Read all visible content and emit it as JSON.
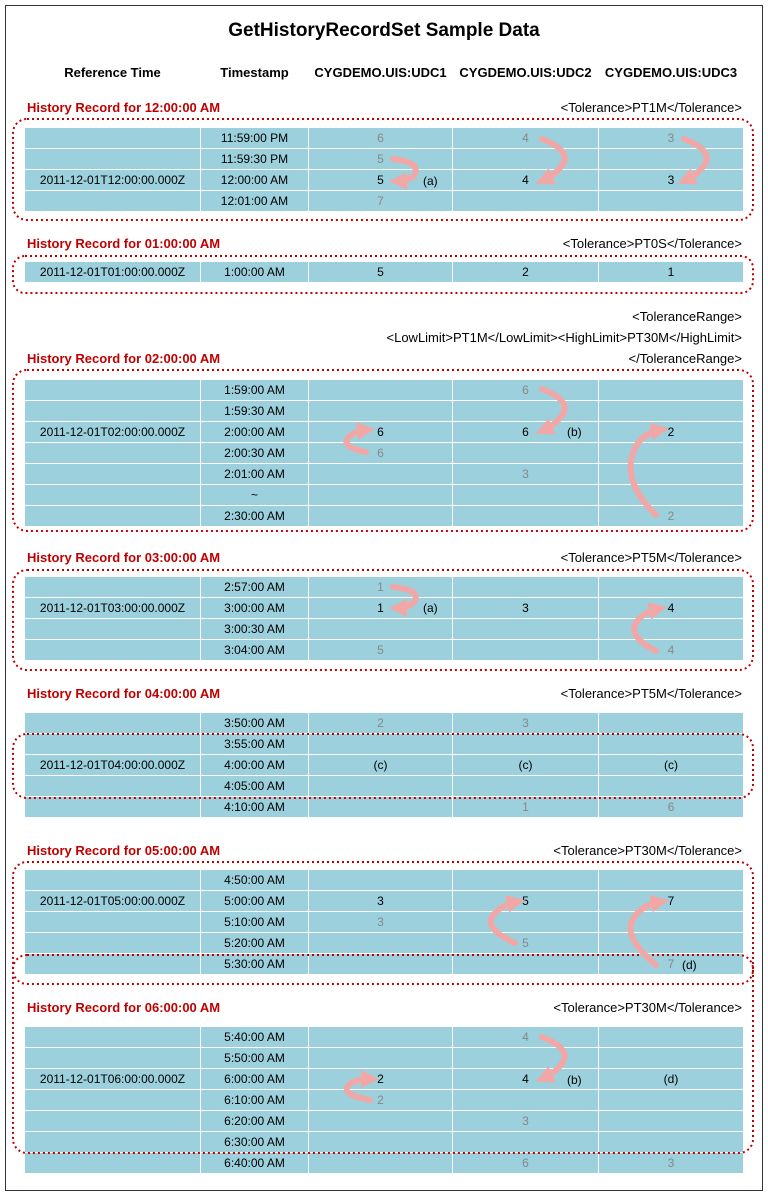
{
  "title": "GetHistoryRecordSet Sample Data",
  "columns": [
    "Reference Time",
    "Timestamp",
    "CYGDEMO.UIS:UDC1",
    "CYGDEMO.UIS:UDC2",
    "CYGDEMO.UIS:UDC3"
  ],
  "sections": [
    {
      "title": "History Record for 12:00:00 AM",
      "tolerance": "<Tolerance>PT1M</Tolerance>",
      "rows": [
        {
          "ref": "",
          "ts": "11:59:00 PM",
          "v": [
            {
              "t": "6",
              "g": true
            },
            {
              "t": "4",
              "g": true
            },
            {
              "t": "3",
              "g": true
            }
          ]
        },
        {
          "ref": "",
          "ts": "11:59:30 PM",
          "v": [
            {
              "t": "5",
              "g": true
            },
            {
              "t": "",
              "g": false
            },
            {
              "t": "",
              "g": false
            }
          ]
        },
        {
          "ref": "2011-12-01T12:00:00.000Z",
          "ts": "12:00:00 AM",
          "v": [
            {
              "t": "5",
              "g": false
            },
            {
              "t": "4",
              "g": false
            },
            {
              "t": "3",
              "g": false
            }
          ]
        },
        {
          "ref": "",
          "ts": "12:01:00 AM",
          "v": [
            {
              "t": "7",
              "g": true
            },
            {
              "t": "",
              "g": false
            },
            {
              "t": "",
              "g": false
            }
          ]
        }
      ]
    },
    {
      "title": "History Record for 01:00:00 AM",
      "tolerance": "<Tolerance>PT0S</Tolerance>",
      "rows": [
        {
          "ref": "2011-12-01T01:00:00.000Z",
          "ts": "1:00:00 AM",
          "v": [
            {
              "t": "5",
              "g": false
            },
            {
              "t": "2",
              "g": false
            },
            {
              "t": "1",
              "g": false
            }
          ]
        }
      ]
    },
    {
      "title": "History Record for 02:00:00 AM",
      "tolerance_lines": [
        "<ToleranceRange>",
        "<LowLimit>PT1M</LowLimit><HighLimit>PT30M</HighLimit>",
        "</ToleranceRange>"
      ],
      "rows": [
        {
          "ref": "",
          "ts": "1:59:00 AM",
          "v": [
            {
              "t": "",
              "g": false
            },
            {
              "t": "6",
              "g": true
            },
            {
              "t": "",
              "g": false
            }
          ]
        },
        {
          "ref": "",
          "ts": "1:59:30 AM",
          "v": [
            {
              "t": "",
              "g": false
            },
            {
              "t": "",
              "g": false
            },
            {
              "t": "",
              "g": false
            }
          ]
        },
        {
          "ref": "2011-12-01T02:00:00.000Z",
          "ts": "2:00:00 AM",
          "v": [
            {
              "t": "6",
              "g": false
            },
            {
              "t": "6",
              "g": false
            },
            {
              "t": "2",
              "g": false
            }
          ]
        },
        {
          "ref": "",
          "ts": "2:00:30 AM",
          "v": [
            {
              "t": "6",
              "g": true
            },
            {
              "t": "",
              "g": false
            },
            {
              "t": "",
              "g": false
            }
          ]
        },
        {
          "ref": "",
          "ts": "2:01:00 AM",
          "v": [
            {
              "t": "",
              "g": false
            },
            {
              "t": "3",
              "g": true
            },
            {
              "t": "",
              "g": false
            }
          ]
        },
        {
          "ref": "",
          "ts": "~",
          "v": [
            {
              "t": "",
              "g": false
            },
            {
              "t": "",
              "g": false
            },
            {
              "t": "",
              "g": false
            }
          ]
        },
        {
          "ref": "",
          "ts": "2:30:00 AM",
          "v": [
            {
              "t": "",
              "g": false
            },
            {
              "t": "",
              "g": false
            },
            {
              "t": "2",
              "g": true
            }
          ]
        }
      ]
    },
    {
      "title": "History Record for 03:00:00 AM",
      "tolerance": "<Tolerance>PT5M</Tolerance>",
      "rows": [
        {
          "ref": "",
          "ts": "2:57:00 AM",
          "v": [
            {
              "t": "1",
              "g": true
            },
            {
              "t": "",
              "g": false
            },
            {
              "t": "",
              "g": false
            }
          ]
        },
        {
          "ref": "2011-12-01T03:00:00.000Z",
          "ts": "3:00:00 AM",
          "v": [
            {
              "t": "1",
              "g": false
            },
            {
              "t": "3",
              "g": false
            },
            {
              "t": "4",
              "g": false
            }
          ]
        },
        {
          "ref": "",
          "ts": "3:00:30 AM",
          "v": [
            {
              "t": "",
              "g": false
            },
            {
              "t": "",
              "g": false
            },
            {
              "t": "",
              "g": false
            }
          ]
        },
        {
          "ref": "",
          "ts": "3:04:00 AM",
          "v": [
            {
              "t": "5",
              "g": true
            },
            {
              "t": "",
              "g": false
            },
            {
              "t": "4",
              "g": true
            }
          ]
        }
      ]
    },
    {
      "title": "History Record for 04:00:00 AM",
      "tolerance": "<Tolerance>PT5M</Tolerance>",
      "rows": [
        {
          "ref": "",
          "ts": "3:50:00 AM",
          "v": [
            {
              "t": "2",
              "g": true
            },
            {
              "t": "3",
              "g": true
            },
            {
              "t": "",
              "g": false
            }
          ]
        },
        {
          "ref": "",
          "ts": "3:55:00 AM",
          "v": [
            {
              "t": "",
              "g": false
            },
            {
              "t": "",
              "g": false
            },
            {
              "t": "",
              "g": false
            }
          ]
        },
        {
          "ref": "2011-12-01T04:00:00.000Z",
          "ts": "4:00:00 AM",
          "v": [
            {
              "t": "(c)",
              "g": false
            },
            {
              "t": "(c)",
              "g": false
            },
            {
              "t": "(c)",
              "g": false
            }
          ]
        },
        {
          "ref": "",
          "ts": "4:05:00 AM",
          "v": [
            {
              "t": "",
              "g": false
            },
            {
              "t": "",
              "g": false
            },
            {
              "t": "",
              "g": false
            }
          ]
        },
        {
          "ref": "",
          "ts": "4:10:00 AM",
          "v": [
            {
              "t": "",
              "g": false
            },
            {
              "t": "1",
              "g": true
            },
            {
              "t": "6",
              "g": true
            }
          ]
        }
      ]
    },
    {
      "title": "History Record for 05:00:00 AM",
      "tolerance": "<Tolerance>PT30M</Tolerance>",
      "rows": [
        {
          "ref": "",
          "ts": "4:50:00 AM",
          "v": [
            {
              "t": "",
              "g": false
            },
            {
              "t": "",
              "g": false
            },
            {
              "t": "",
              "g": false
            }
          ]
        },
        {
          "ref": "2011-12-01T05:00:00.000Z",
          "ts": "5:00:00 AM",
          "v": [
            {
              "t": "3",
              "g": false
            },
            {
              "t": "5",
              "g": false
            },
            {
              "t": "7",
              "g": false
            }
          ]
        },
        {
          "ref": "",
          "ts": "5:10:00 AM",
          "v": [
            {
              "t": "3",
              "g": true
            },
            {
              "t": "",
              "g": false
            },
            {
              "t": "",
              "g": false
            }
          ]
        },
        {
          "ref": "",
          "ts": "5:20:00 AM",
          "v": [
            {
              "t": "",
              "g": false
            },
            {
              "t": "5",
              "g": true
            },
            {
              "t": "",
              "g": false
            }
          ]
        },
        {
          "ref": "",
          "ts": "5:30:00 AM",
          "v": [
            {
              "t": "",
              "g": false
            },
            {
              "t": "",
              "g": false
            },
            {
              "t": "7",
              "g": true
            }
          ]
        }
      ]
    },
    {
      "title": "History Record for 06:00:00 AM",
      "tolerance": "<Tolerance>PT30M</Tolerance>",
      "rows": [
        {
          "ref": "",
          "ts": "5:40:00 AM",
          "v": [
            {
              "t": "",
              "g": false
            },
            {
              "t": "4",
              "g": true
            },
            {
              "t": "",
              "g": false
            }
          ]
        },
        {
          "ref": "",
          "ts": "5:50:00 AM",
          "v": [
            {
              "t": "",
              "g": false
            },
            {
              "t": "",
              "g": false
            },
            {
              "t": "",
              "g": false
            }
          ]
        },
        {
          "ref": "2011-12-01T06:00:00.000Z",
          "ts": "6:00:00 AM",
          "v": [
            {
              "t": "2",
              "g": false
            },
            {
              "t": "4",
              "g": false
            },
            {
              "t": "(d)",
              "g": false
            }
          ]
        },
        {
          "ref": "",
          "ts": "6:10:00 AM",
          "v": [
            {
              "t": "2",
              "g": true
            },
            {
              "t": "",
              "g": false
            },
            {
              "t": "",
              "g": false
            }
          ]
        },
        {
          "ref": "",
          "ts": "6:20:00 AM",
          "v": [
            {
              "t": "",
              "g": false
            },
            {
              "t": "3",
              "g": true
            },
            {
              "t": "",
              "g": false
            }
          ]
        },
        {
          "ref": "",
          "ts": "6:30:00 AM",
          "v": [
            {
              "t": "",
              "g": false
            },
            {
              "t": "",
              "g": false
            },
            {
              "t": "",
              "g": false
            }
          ]
        },
        {
          "ref": "",
          "ts": "6:40:00 AM",
          "v": [
            {
              "t": "",
              "g": false
            },
            {
              "t": "6",
              "g": true
            },
            {
              "t": "3",
              "g": true
            }
          ]
        }
      ]
    }
  ],
  "notes": [
    "(a)",
    "(b)",
    "(a)",
    "(b)",
    "(d)"
  ],
  "colors": {
    "row_fill": "#9bd0dc",
    "section_title": "#c00000",
    "dotted_border": "#c00000",
    "arrow": "#f2a7a7",
    "ghost_value": "#888888"
  }
}
